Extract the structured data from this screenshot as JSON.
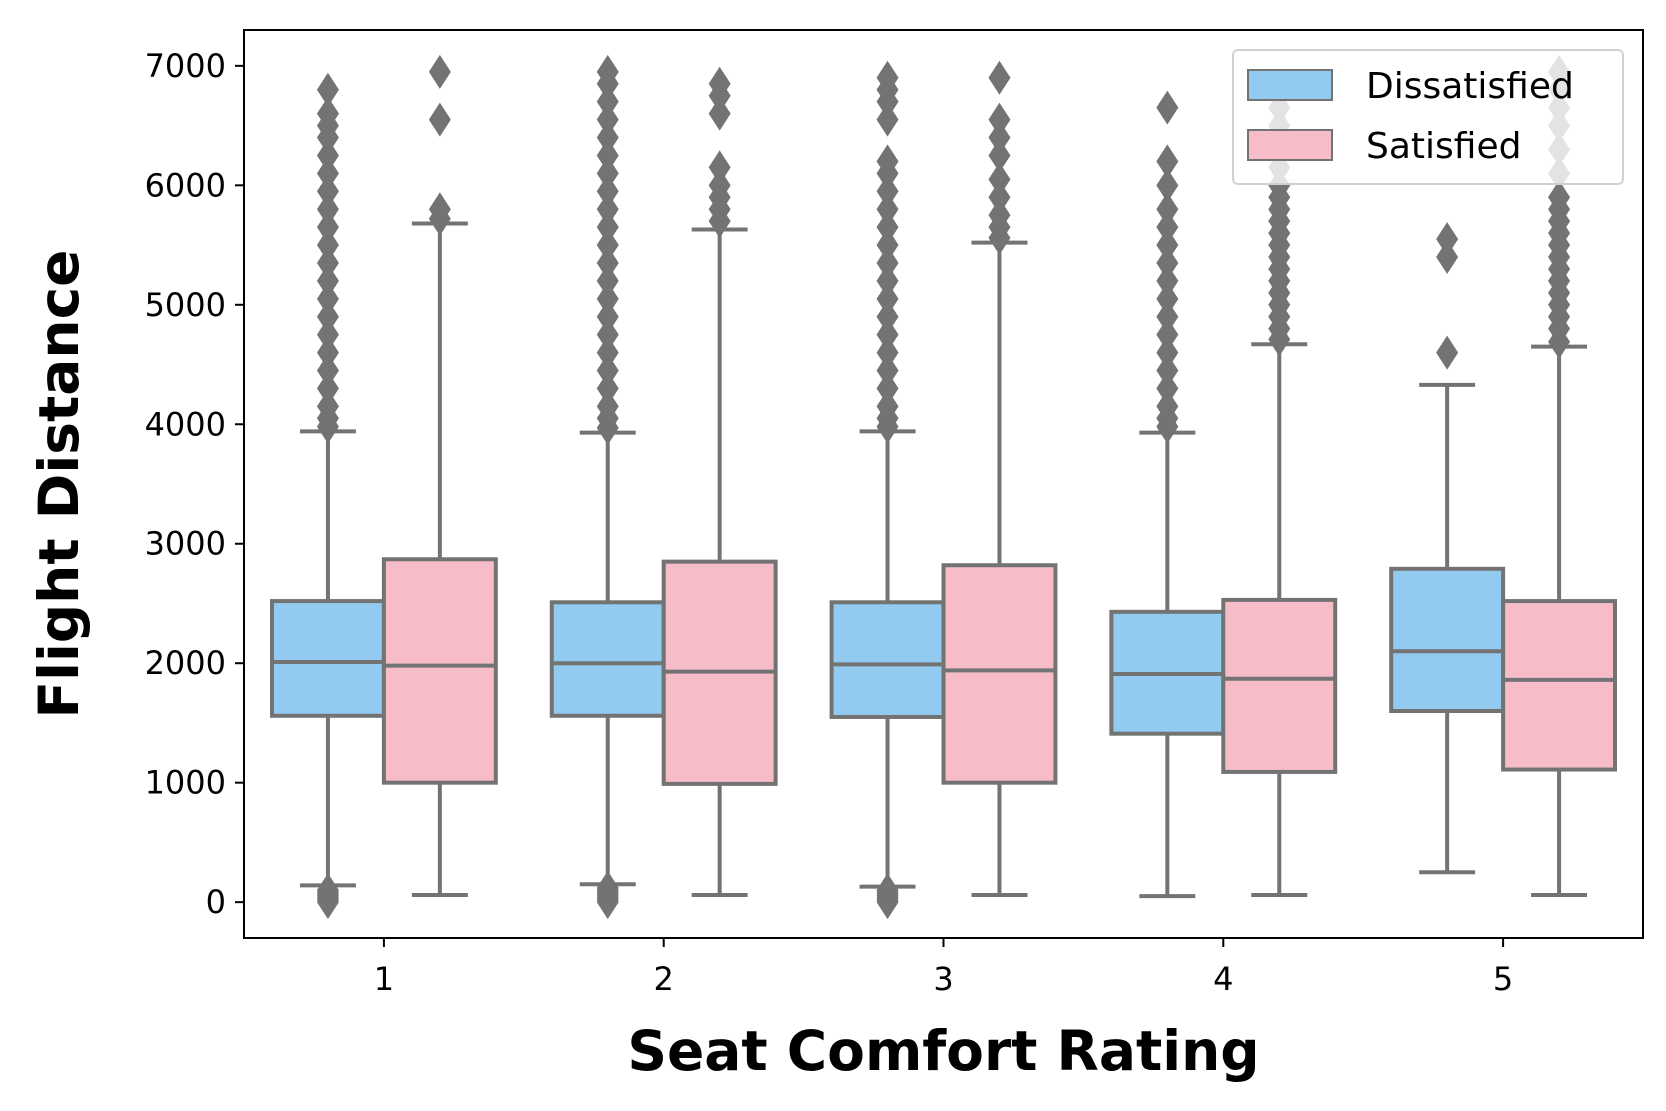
{
  "chart_data": {
    "type": "box",
    "xlabel": "Seat Comfort Rating",
    "ylabel": "Flight Distance",
    "categories": [
      "1",
      "2",
      "3",
      "4",
      "5"
    ],
    "yticks": [
      0,
      1000,
      2000,
      3000,
      4000,
      5000,
      6000,
      7000
    ],
    "ylim": [
      -300,
      7300
    ],
    "grid": false,
    "legend_position": "top-right",
    "colors": {
      "Dissatisfied": "#93CAEF",
      "Satisfied": "#F6BDC9",
      "line": "#737373"
    },
    "series": [
      {
        "name": "Dissatisfied",
        "boxes": [
          {
            "whisker_low": 140,
            "q1": 1560,
            "median": 2010,
            "q3": 2520,
            "whisker_high": 3940,
            "outliers_low": [
              0,
              20,
              40,
              60,
              80,
              100
            ],
            "outliers_high": [
              3980,
              4050,
              4150,
              4300,
              4450,
              4600,
              4750,
              4900,
              5050,
              5200,
              5350,
              5500,
              5650,
              5800,
              5950,
              6100,
              6250,
              6400,
              6500,
              6600,
              6800
            ]
          },
          {
            "whisker_low": 150,
            "q1": 1560,
            "median": 2000,
            "q3": 2510,
            "whisker_high": 3930,
            "outliers_low": [
              0,
              20,
              40,
              60,
              80,
              100,
              120
            ],
            "outliers_high": [
              3970,
              4050,
              4150,
              4300,
              4450,
              4600,
              4750,
              4900,
              5050,
              5200,
              5350,
              5500,
              5650,
              5800,
              5950,
              6100,
              6250,
              6400,
              6550,
              6700,
              6850,
              6950
            ]
          },
          {
            "whisker_low": 130,
            "q1": 1550,
            "median": 1990,
            "q3": 2510,
            "whisker_high": 3940,
            "outliers_low": [
              0,
              20,
              40,
              60,
              80,
              100
            ],
            "outliers_high": [
              3980,
              4050,
              4150,
              4300,
              4450,
              4600,
              4750,
              4900,
              5050,
              5200,
              5350,
              5500,
              5650,
              5800,
              5950,
              6100,
              6200,
              6550,
              6700,
              6800,
              6900
            ]
          },
          {
            "whisker_low": 50,
            "q1": 1410,
            "median": 1910,
            "q3": 2430,
            "whisker_high": 3930,
            "outliers_low": [],
            "outliers_high": [
              3980,
              4050,
              4150,
              4300,
              4450,
              4600,
              4750,
              4900,
              5050,
              5200,
              5350,
              5500,
              5650,
              5800,
              6000,
              6200,
              6650
            ]
          },
          {
            "whisker_low": 250,
            "q1": 1600,
            "median": 2100,
            "q3": 2790,
            "whisker_high": 4330,
            "outliers_low": [],
            "outliers_high": [
              4600,
              5400,
              5550
            ]
          }
        ]
      },
      {
        "name": "Satisfied",
        "boxes": [
          {
            "whisker_low": 60,
            "q1": 1000,
            "median": 1980,
            "q3": 2870,
            "whisker_high": 5680,
            "outliers_low": [],
            "outliers_high": [
              5720,
              5800,
              6550,
              6950
            ]
          },
          {
            "whisker_low": 60,
            "q1": 990,
            "median": 1930,
            "q3": 2850,
            "whisker_high": 5630,
            "outliers_low": [],
            "outliers_high": [
              5700,
              5800,
              5900,
              6000,
              6150,
              6600,
              6750,
              6850
            ]
          },
          {
            "whisker_low": 60,
            "q1": 1000,
            "median": 1940,
            "q3": 2820,
            "whisker_high": 5520,
            "outliers_low": [],
            "outliers_high": [
              5560,
              5650,
              5750,
              5900,
              6050,
              6250,
              6400,
              6550,
              6900
            ]
          },
          {
            "whisker_low": 60,
            "q1": 1090,
            "median": 1870,
            "q3": 2530,
            "whisker_high": 4670,
            "outliers_low": [],
            "outliers_high": [
              4710,
              4800,
              4900,
              5000,
              5100,
              5200,
              5300,
              5400,
              5500,
              5600,
              5700,
              5800,
              5900,
              6000,
              6150,
              6300,
              6500,
              6650
            ]
          },
          {
            "whisker_low": 60,
            "q1": 1110,
            "median": 1860,
            "q3": 2520,
            "whisker_high": 4650,
            "outliers_low": [],
            "outliers_high": [
              4690,
              4800,
              4900,
              5000,
              5100,
              5200,
              5300,
              5400,
              5500,
              5600,
              5700,
              5800,
              5900,
              6100,
              6300,
              6500,
              6650,
              6800,
              6950
            ]
          }
        ]
      }
    ]
  }
}
